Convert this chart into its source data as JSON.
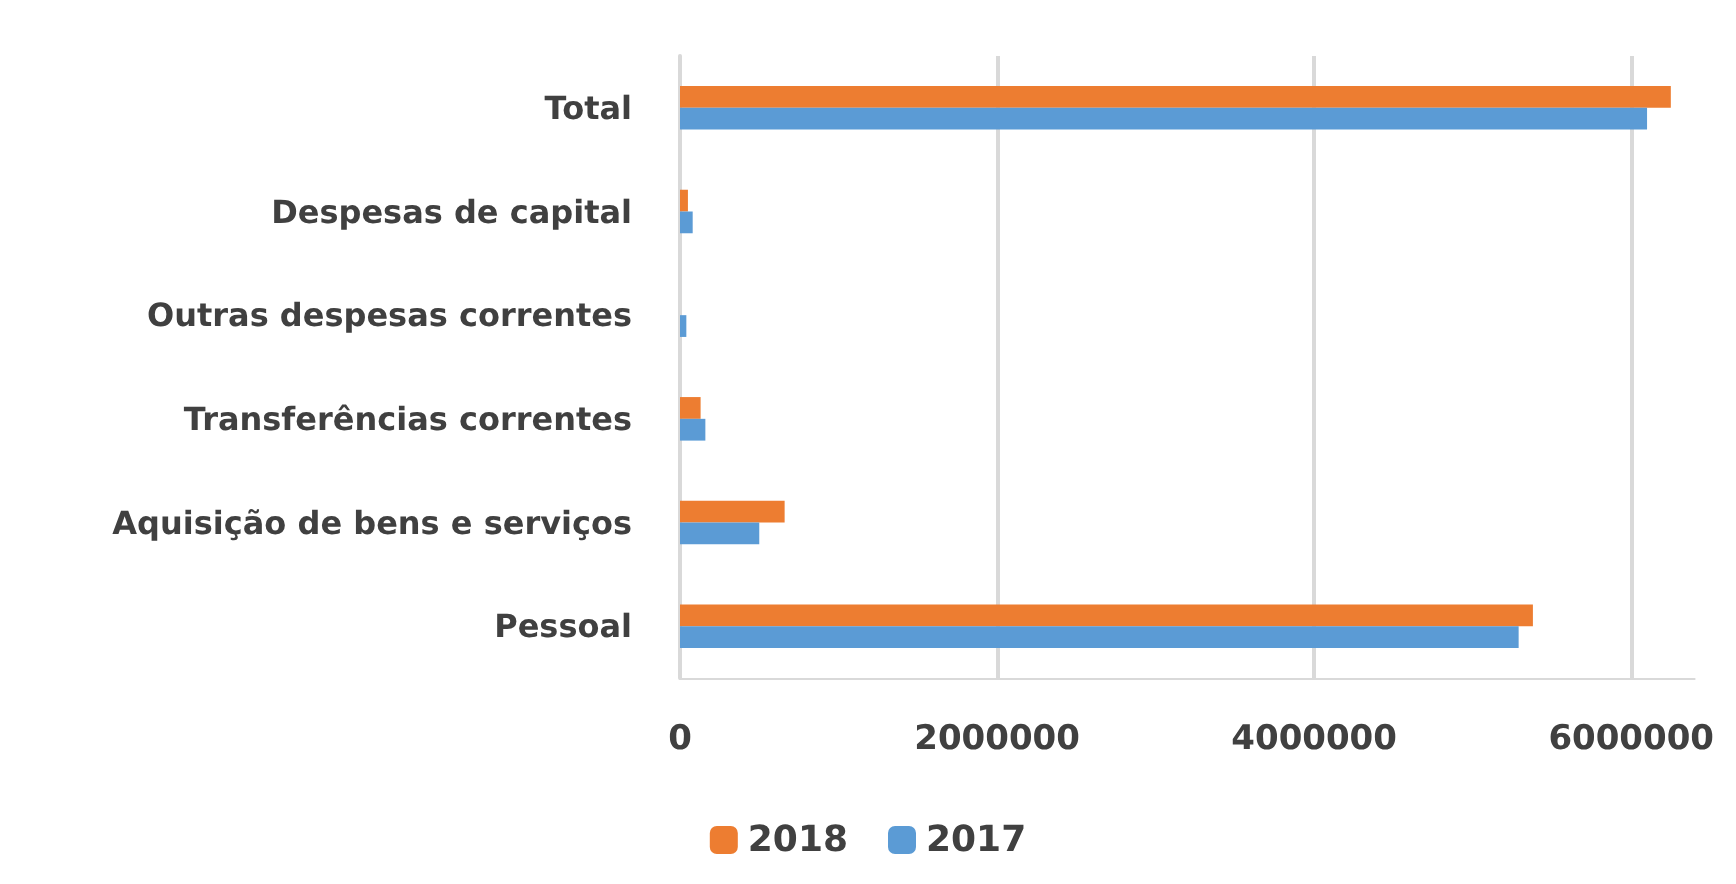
{
  "chart_data": {
    "type": "bar",
    "orientation": "horizontal",
    "categories": [
      "Total",
      "Despesas de capital",
      "Outras despesas correntes",
      "Transferências correntes",
      "Aquisição de bens e serviços",
      "Pessoal"
    ],
    "series": [
      {
        "name": "2018",
        "color": "#ed7d31",
        "values": [
          6250000,
          50000,
          0,
          130000,
          660000,
          5380000
        ]
      },
      {
        "name": "2017",
        "color": "#5b9bd5",
        "values": [
          6100000,
          80000,
          40000,
          160000,
          500000,
          5290000
        ]
      }
    ],
    "xlim": [
      0,
      6400000
    ],
    "xticks": [
      0,
      2000000,
      4000000,
      6000000
    ],
    "grid": "x",
    "legend": "bottom"
  }
}
